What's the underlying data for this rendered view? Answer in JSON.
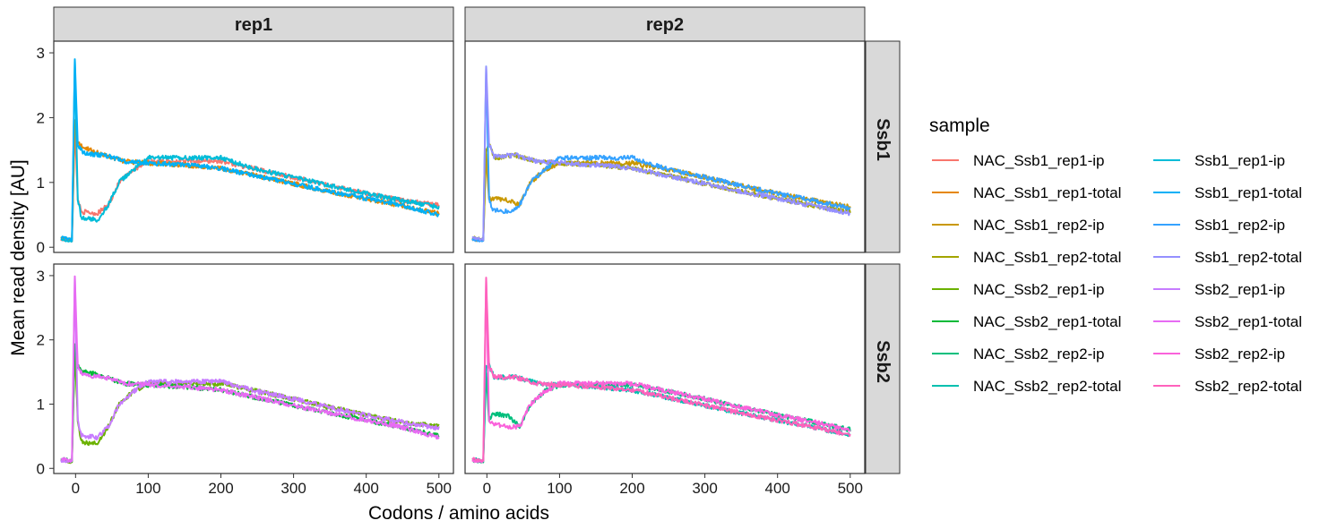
{
  "chart_data": {
    "type": "line",
    "xlabel": "Codons / amino acids",
    "ylabel": "Mean read density [AU]",
    "xlim": [
      -30,
      520
    ],
    "ylim": [
      -0.08,
      3.18
    ],
    "x_ticks": [
      0,
      100,
      200,
      300,
      400,
      500
    ],
    "y_ticks": [
      0,
      1,
      2,
      3
    ],
    "facet_columns": [
      "rep1",
      "rep2"
    ],
    "facet_rows": [
      "Ssb1",
      "Ssb2"
    ],
    "legend": {
      "title": "sample",
      "placement": "right"
    },
    "profile_types": {
      "ip": {
        "description_points": [
          [
            -20,
            0.12
          ],
          [
            -5,
            0.1
          ],
          [
            -1,
            2.0
          ],
          [
            3,
            0.75
          ],
          [
            8,
            0.55
          ],
          [
            30,
            0.5
          ],
          [
            45,
            0.65
          ],
          [
            60,
            1.0
          ],
          [
            80,
            1.2
          ],
          [
            100,
            1.26
          ],
          [
            150,
            1.3
          ],
          [
            200,
            1.3
          ],
          [
            250,
            1.2
          ],
          [
            300,
            1.08
          ],
          [
            350,
            0.95
          ],
          [
            400,
            0.83
          ],
          [
            450,
            0.72
          ],
          [
            500,
            0.6
          ]
        ]
      },
      "total": {
        "description_points": [
          [
            -20,
            0.15
          ],
          [
            -5,
            0.12
          ],
          [
            -1,
            2.9
          ],
          [
            3,
            1.6
          ],
          [
            10,
            1.5
          ],
          [
            40,
            1.42
          ],
          [
            70,
            1.32
          ],
          [
            100,
            1.3
          ],
          [
            150,
            1.27
          ],
          [
            200,
            1.22
          ],
          [
            250,
            1.1
          ],
          [
            300,
            0.98
          ],
          [
            350,
            0.86
          ],
          [
            400,
            0.75
          ],
          [
            450,
            0.64
          ],
          [
            500,
            0.55
          ]
        ]
      }
    },
    "series": [
      {
        "name": "NAC_Ssb1_rep1-ip",
        "color": "#F8766D",
        "panel": "Ssb1-rep1",
        "type": "ip",
        "peak": 1.9,
        "trough": 0.52,
        "mid": 1.33,
        "end": 0.65
      },
      {
        "name": "NAC_Ssb1_rep1-total",
        "color": "#E58700",
        "panel": "Ssb1-rep1",
        "type": "total",
        "peak": 1.95,
        "trough": 1.55,
        "mid": 1.25,
        "end": 0.52
      },
      {
        "name": "NAC_Ssb1_rep2-ip",
        "color": "#C99800",
        "panel": "Ssb1-rep2",
        "type": "ip",
        "peak": 1.45,
        "trough": 0.72,
        "mid": 1.3,
        "end": 0.62
      },
      {
        "name": "NAC_Ssb1_rep2-total",
        "color": "#A3A500",
        "panel": "Ssb1-rep2",
        "type": "total",
        "peak": 1.5,
        "trough": 1.38,
        "mid": 1.2,
        "end": 0.55
      },
      {
        "name": "NAC_Ssb2_rep1-ip",
        "color": "#6BB100",
        "panel": "Ssb2-rep1",
        "type": "ip",
        "peak": 1.9,
        "trough": 0.38,
        "mid": 1.32,
        "end": 0.66
      },
      {
        "name": "NAC_Ssb2_rep1-total",
        "color": "#00BA38",
        "panel": "Ssb2-rep1",
        "type": "total",
        "peak": 1.95,
        "trough": 1.52,
        "mid": 1.25,
        "end": 0.5
      },
      {
        "name": "NAC_Ssb2_rep2-ip",
        "color": "#00BF7D",
        "panel": "Ssb2-rep2",
        "type": "ip",
        "peak": 1.5,
        "trough": 0.82,
        "mid": 1.3,
        "end": 0.6
      },
      {
        "name": "NAC_Ssb2_rep2-total",
        "color": "#00C0AF",
        "panel": "Ssb2-rep2",
        "type": "total",
        "peak": 1.6,
        "trough": 1.42,
        "mid": 1.22,
        "end": 0.52
      },
      {
        "name": "Ssb1_rep1-ip",
        "color": "#00BCD8",
        "panel": "Ssb1-rep1",
        "type": "ip",
        "peak": 2.9,
        "trough": 0.42,
        "mid": 1.38,
        "end": 0.62
      },
      {
        "name": "Ssb1_rep1-total",
        "color": "#00B0F6",
        "panel": "Ssb1-rep1",
        "type": "total",
        "peak": 2.9,
        "trough": 1.45,
        "mid": 1.22,
        "end": 0.5
      },
      {
        "name": "Ssb1_rep2-ip",
        "color": "#35A2FF",
        "panel": "Ssb1-rep2",
        "type": "ip",
        "peak": 2.8,
        "trough": 0.55,
        "mid": 1.38,
        "end": 0.6
      },
      {
        "name": "Ssb1_rep2-total",
        "color": "#9590FF",
        "panel": "Ssb1-rep2",
        "type": "total",
        "peak": 2.8,
        "trough": 1.4,
        "mid": 1.2,
        "end": 0.52
      },
      {
        "name": "Ssb2_rep1-ip",
        "color": "#C77CFF",
        "panel": "Ssb2-rep1",
        "type": "ip",
        "peak": 3.0,
        "trough": 0.48,
        "mid": 1.35,
        "end": 0.62
      },
      {
        "name": "Ssb2_rep1-total",
        "color": "#E76BF3",
        "panel": "Ssb2-rep1",
        "type": "total",
        "peak": 3.0,
        "trough": 1.45,
        "mid": 1.22,
        "end": 0.48
      },
      {
        "name": "Ssb2_rep2-ip",
        "color": "#FA62DB",
        "panel": "Ssb2-rep2",
        "type": "ip",
        "peak": 2.95,
        "trough": 0.65,
        "mid": 1.32,
        "end": 0.6
      },
      {
        "name": "Ssb2_rep2-total",
        "color": "#FF62BC",
        "panel": "Ssb2-rep2",
        "type": "total",
        "peak": 2.95,
        "trough": 1.42,
        "mid": 1.22,
        "end": 0.52
      }
    ]
  }
}
